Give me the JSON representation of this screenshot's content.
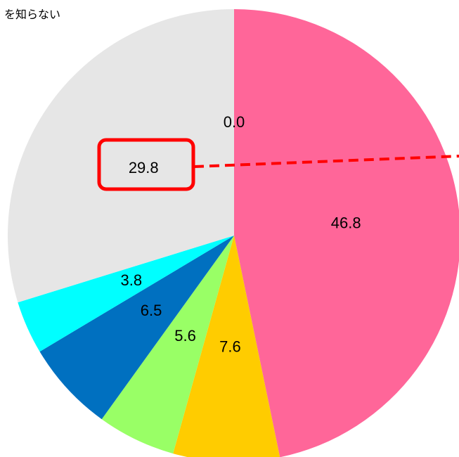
{
  "chart_data": {
    "type": "pie",
    "annotation": "を知らない",
    "categories": [
      null,
      null,
      null,
      null,
      null,
      null,
      null
    ],
    "values": [
      46.8,
      7.6,
      5.6,
      6.5,
      3.8,
      29.8,
      0.0
    ],
    "value_labels": [
      "46.8",
      "7.6",
      "5.6",
      "6.5",
      "3.8",
      "29.8",
      "0.0"
    ],
    "colors": [
      "#ff6699",
      "#ffcc00",
      "#99ff66",
      "#0070c0",
      "#00ffff",
      "#e6e6e6",
      "#d9d9d9"
    ]
  }
}
